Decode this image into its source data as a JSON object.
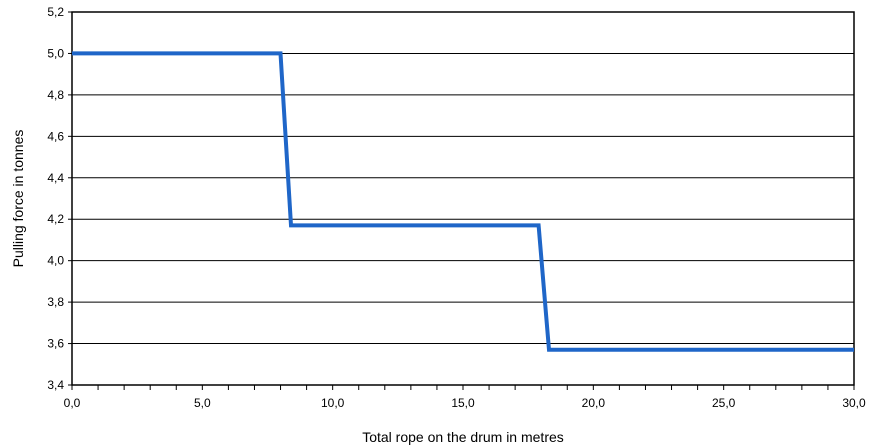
{
  "chart_data": {
    "type": "line",
    "title": "",
    "xlabel": "Total rope on the drum in metres",
    "ylabel": "Pulling force in tonnes",
    "xlim": [
      0,
      30
    ],
    "ylim": [
      3.4,
      5.2
    ],
    "x_ticks": [
      {
        "value": 0,
        "label": "0,0"
      },
      {
        "value": 5,
        "label": "5,0"
      },
      {
        "value": 10,
        "label": "10,0"
      },
      {
        "value": 15,
        "label": "15,0"
      },
      {
        "value": 20,
        "label": "20,0"
      },
      {
        "value": 25,
        "label": "25,0"
      },
      {
        "value": 30,
        "label": "30,0"
      }
    ],
    "x_minor_step": 1,
    "y_ticks": [
      {
        "value": 3.4,
        "label": "3,4"
      },
      {
        "value": 3.6,
        "label": "3,6"
      },
      {
        "value": 3.8,
        "label": "3,8"
      },
      {
        "value": 4.0,
        "label": "4,0"
      },
      {
        "value": 4.2,
        "label": "4,2"
      },
      {
        "value": 4.4,
        "label": "4,4"
      },
      {
        "value": 4.6,
        "label": "4,6"
      },
      {
        "value": 4.8,
        "label": "4,8"
      },
      {
        "value": 5.0,
        "label": "5,0"
      },
      {
        "value": 5.2,
        "label": "5,2"
      }
    ],
    "grid": {
      "horizontal": true,
      "vertical": false
    },
    "legend": "none",
    "series": [
      {
        "color": "#1f66c8",
        "x": [
          0,
          8.0,
          8.4,
          17.9,
          18.3,
          30
        ],
        "y": [
          5.0,
          5.0,
          4.17,
          4.17,
          3.57,
          3.57
        ]
      }
    ]
  }
}
